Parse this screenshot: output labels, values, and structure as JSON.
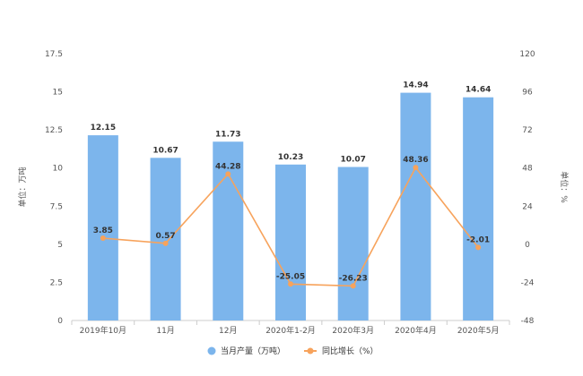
{
  "chart_data": {
    "type": "bar",
    "categories": [
      "2019年10月",
      "11月",
      "12月",
      "2020年1-2月",
      "2020年3月",
      "2020年4月",
      "2020年5月"
    ],
    "series": [
      {
        "name": "当月产量（万吨）",
        "type": "bar",
        "axis": "left",
        "color": "#7cb5ec",
        "values": [
          12.15,
          10.67,
          11.73,
          10.23,
          10.07,
          14.94,
          14.64
        ]
      },
      {
        "name": "同比增长（%）",
        "type": "line",
        "axis": "right",
        "color": "#f7a35c",
        "values": [
          3.85,
          0.57,
          44.28,
          -25.05,
          -26.23,
          48.36,
          -2.01
        ]
      }
    ],
    "bar_labels": [
      "12.15",
      "10.67",
      "11.73",
      "10.23",
      "10.07",
      "14.94",
      "14.64"
    ],
    "line_labels": [
      "3.85",
      "0.57",
      "44.28",
      "-25.05",
      "-26.23",
      "48.36",
      "-2.01"
    ],
    "left_axis": {
      "label": "单位：万吨",
      "ylim": [
        0,
        17.5
      ],
      "ticks": [
        "0",
        "2.5",
        "5",
        "7.5",
        "10",
        "12.5",
        "15",
        "17.5"
      ]
    },
    "right_axis": {
      "label": "单位：%",
      "ylim": [
        -48,
        120
      ],
      "ticks": [
        "-48",
        "-24",
        "0",
        "24",
        "48",
        "72",
        "96",
        "120"
      ]
    },
    "grid": false,
    "legend_position": "bottom-center"
  }
}
